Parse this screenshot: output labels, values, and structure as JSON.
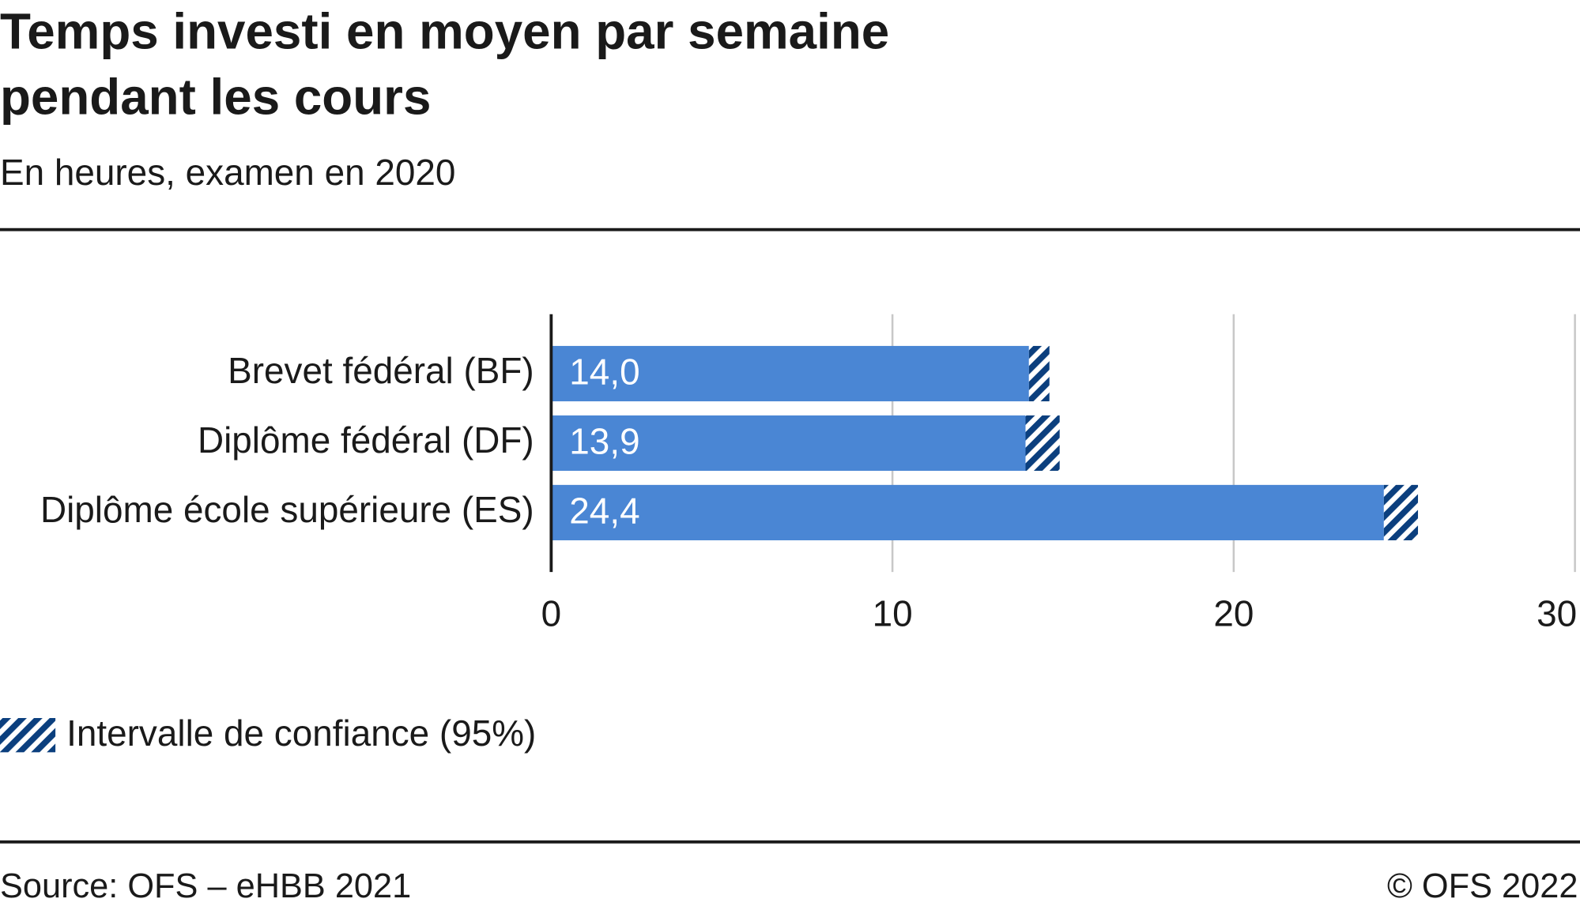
{
  "chart_data": {
    "type": "bar",
    "orientation": "horizontal",
    "title": [
      "Temps investi en moyen par semaine",
      "pendant les cours"
    ],
    "subtitle": "En heures, examen en 2020",
    "categories": [
      "Brevet fédéral (BF)",
      "Diplôme fédéral (DF)",
      "Diplôme école supérieure (ES)"
    ],
    "values": [
      14.0,
      13.9,
      24.4
    ],
    "value_labels": [
      "14,0",
      "13,9",
      "24,4"
    ],
    "errors": [
      0.6,
      1.0,
      1.0
    ],
    "color": "#4a86d4",
    "error_color": "#0b3f7e",
    "xlim": [
      0,
      30
    ],
    "xticks": [
      0,
      10,
      20,
      30
    ],
    "grid": true,
    "legend": "Intervalle de confiance (95%)",
    "source": "Source: OFS – eHBB 2021",
    "copyright": "© OFS 2022"
  }
}
